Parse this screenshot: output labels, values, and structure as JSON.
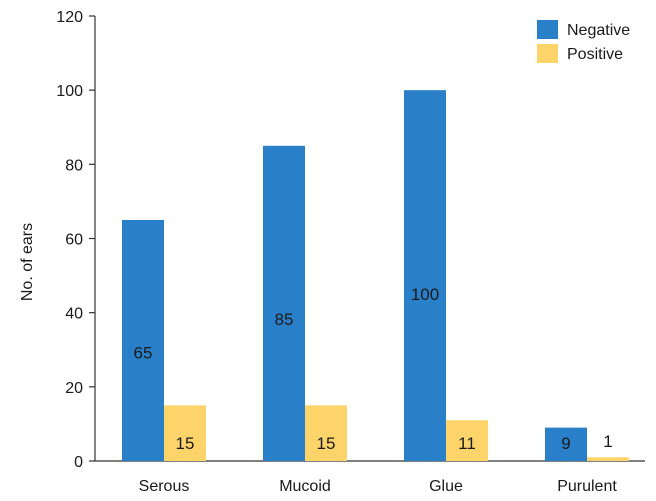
{
  "chart_data": {
    "type": "bar",
    "title": "",
    "xlabel": "",
    "ylabel": "No. of ears",
    "ylim": [
      0,
      120
    ],
    "yticks": [
      0,
      20,
      40,
      60,
      80,
      100,
      120
    ],
    "grid": false,
    "legend_position": "top-right",
    "categories": [
      "Serous",
      "Mucoid",
      "Glue",
      "Purulent"
    ],
    "series": [
      {
        "name": "Negative",
        "color": "#2a80c8",
        "values": [
          65,
          85,
          100,
          9
        ]
      },
      {
        "name": "Positive",
        "color": "#fcd46a",
        "values": [
          15,
          15,
          11,
          1
        ]
      }
    ]
  }
}
